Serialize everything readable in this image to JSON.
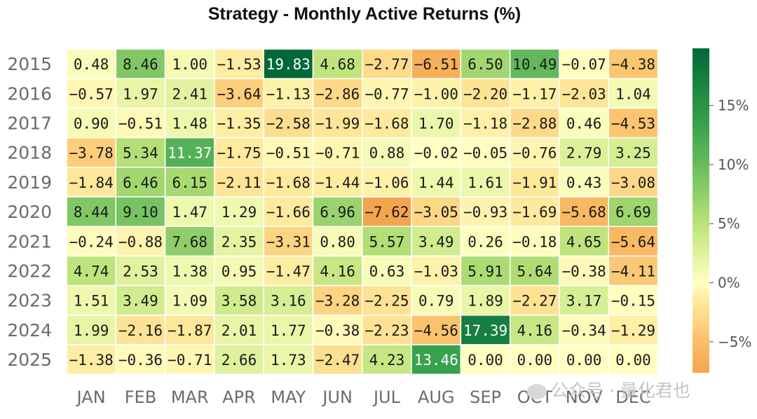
{
  "chart_data": {
    "type": "heatmap",
    "title": "Strategy - Monthly Active Returns (%)",
    "x_categories": [
      "JAN",
      "FEB",
      "MAR",
      "APR",
      "MAY",
      "JUN",
      "JUL",
      "AUG",
      "SEP",
      "OCT",
      "NOV",
      "DEC"
    ],
    "y_categories": [
      "2015",
      "2016",
      "2017",
      "2018",
      "2019",
      "2020",
      "2021",
      "2022",
      "2023",
      "2024",
      "2025"
    ],
    "values": [
      [
        0.48,
        8.46,
        1.0,
        -1.53,
        19.83,
        4.68,
        -2.77,
        -6.51,
        6.5,
        10.49,
        -0.07,
        -4.38
      ],
      [
        -0.57,
        1.97,
        2.41,
        -3.64,
        -1.13,
        -2.86,
        -0.77,
        -1.0,
        -2.2,
        -1.17,
        -2.03,
        1.04
      ],
      [
        0.9,
        -0.51,
        1.48,
        -1.35,
        -2.58,
        -1.99,
        -1.68,
        1.7,
        -1.18,
        -2.88,
        0.46,
        -4.53
      ],
      [
        -3.78,
        5.34,
        11.37,
        -1.75,
        -0.51,
        -0.71,
        0.88,
        -0.02,
        -0.05,
        -0.76,
        2.79,
        3.25
      ],
      [
        -1.84,
        6.46,
        6.15,
        -2.11,
        -1.68,
        -1.44,
        -1.06,
        1.44,
        1.61,
        -1.91,
        0.43,
        -3.08
      ],
      [
        8.44,
        9.1,
        1.47,
        1.29,
        -1.66,
        6.96,
        -7.62,
        -3.05,
        -0.93,
        -1.69,
        -5.68,
        6.69
      ],
      [
        -0.24,
        -0.88,
        7.68,
        2.35,
        -3.31,
        0.8,
        5.57,
        3.49,
        0.26,
        -0.18,
        4.65,
        -5.64
      ],
      [
        4.74,
        2.53,
        1.38,
        0.95,
        -1.47,
        4.16,
        0.63,
        -1.03,
        5.91,
        5.64,
        -0.38,
        -4.11
      ],
      [
        1.51,
        3.49,
        1.09,
        3.58,
        3.16,
        -3.28,
        -2.25,
        0.79,
        1.89,
        -2.27,
        3.17,
        -0.15
      ],
      [
        1.99,
        -2.16,
        -1.87,
        2.01,
        1.77,
        -0.38,
        -2.23,
        -4.56,
        17.39,
        4.16,
        -0.34,
        -1.29
      ],
      [
        -1.38,
        -0.36,
        -0.71,
        2.66,
        1.73,
        -2.47,
        4.23,
        13.46,
        0.0,
        0.0,
        0.0,
        0.0
      ]
    ],
    "colorbar": {
      "ticks": [
        -5,
        0,
        5,
        10,
        15
      ],
      "tick_labels": [
        "−5%",
        "0%",
        "5%",
        "10%",
        "15%"
      ],
      "range": [
        -7.62,
        19.83
      ],
      "colors": {
        "low": "#f5a44e",
        "mid": "#ffffc2",
        "high": "#006837"
      }
    }
  },
  "watermark": {
    "text": "公众号 · 量化君也",
    "icon": "wechat-icon"
  }
}
